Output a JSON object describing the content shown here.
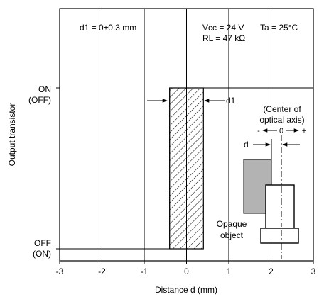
{
  "chart_data": {
    "type": "line",
    "xlabel": "Distance d (mm)",
    "ylabel": "Output transistor",
    "xlim": [
      -3,
      3
    ],
    "xticks": [
      "-3",
      "-2",
      "-1",
      "0",
      "1",
      "2",
      "3"
    ],
    "ylevels": {
      "on": [
        "ON",
        "(OFF)"
      ],
      "off": [
        "OFF",
        "(ON)"
      ]
    },
    "grid": true,
    "series": [
      {
        "x": [
          -3,
          -0.4,
          -0.4,
          0.4,
          0.4,
          3
        ],
        "y": [
          "off",
          "off",
          "on",
          "on",
          "on",
          "on"
        ]
      }
    ],
    "hysteresis_band": [
      -0.4,
      0.4
    ],
    "annotations": {
      "d1_condition": "d1 = 0±0.3 mm",
      "vcc": "Vcc = 24 V",
      "ta": "Ta = 25°C",
      "rl": "RL = 47 kΩ",
      "d1_label": "d1",
      "optical_axis_1": "(Center of",
      "optical_axis_2": "optical axis)",
      "axis_dir_minus": "-",
      "axis_dir_zero": "0",
      "axis_dir_plus": "+",
      "d_label": "d",
      "opaque_1": "Opaque",
      "opaque_2": "object"
    },
    "colors": {
      "line": "#000000",
      "opaque_object": "#b3b3b3"
    }
  }
}
